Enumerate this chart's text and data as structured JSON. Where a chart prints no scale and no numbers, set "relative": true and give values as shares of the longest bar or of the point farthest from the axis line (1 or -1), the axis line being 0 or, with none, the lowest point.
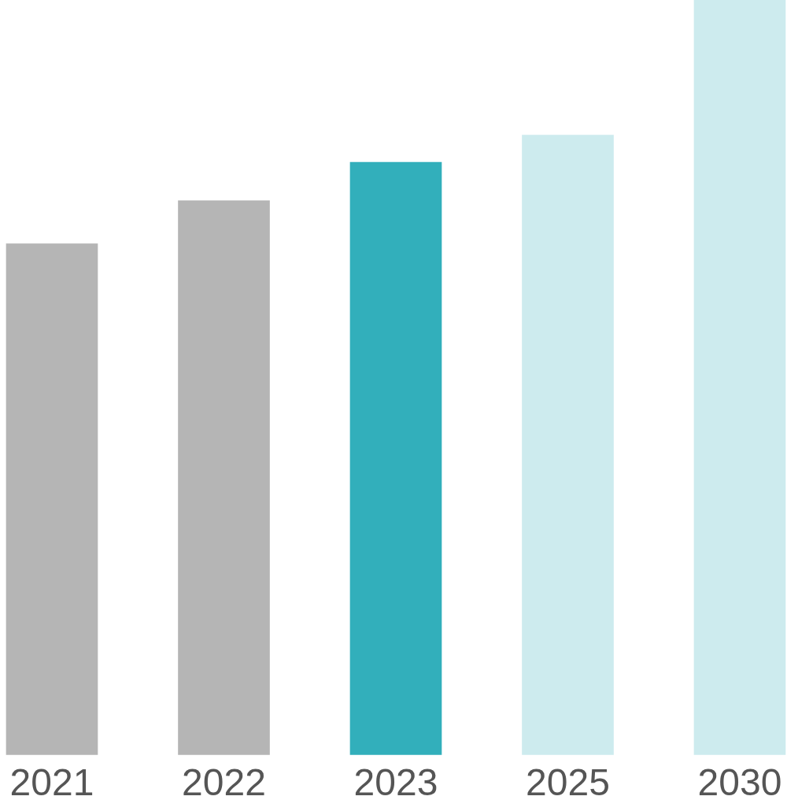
{
  "chart_data": {
    "type": "bar",
    "relative": true,
    "categories": [
      "2021",
      "2022",
      "2023",
      "2025",
      "2030"
    ],
    "values": [
      0.677,
      0.734,
      0.785,
      0.821,
      1
    ],
    "colors": [
      "#b5b5b5",
      "#b5b5b5",
      "#32afbb",
      "#cdebee",
      "#cdebee"
    ],
    "legend": false
  }
}
